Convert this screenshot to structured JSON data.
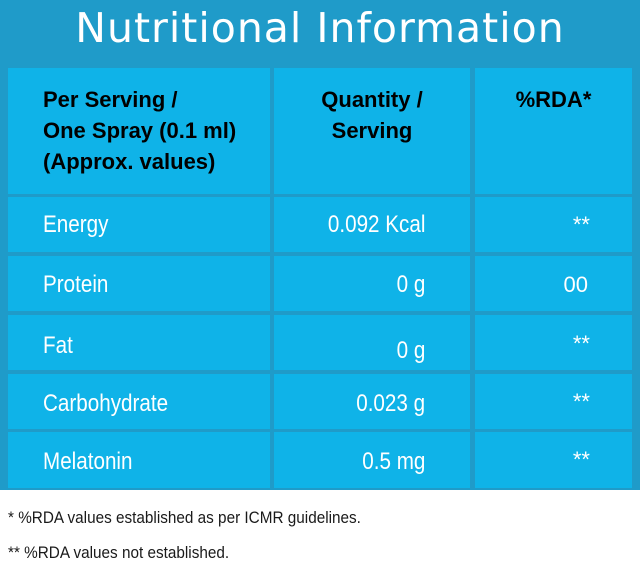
{
  "title": "Nutritional Information",
  "table": {
    "headers": {
      "col1": [
        "Per Serving /",
        "One Spray (0.1 ml)",
        "(Approx. values)"
      ],
      "col2": [
        "Quantity /",
        "Serving"
      ],
      "col3": [
        "%RDA*"
      ]
    },
    "rows": [
      {
        "name": "Energy",
        "quantity": "0.092 Kcal",
        "rda": "**"
      },
      {
        "name": "Protein",
        "quantity": "0 g",
        "rda": "00"
      },
      {
        "name": "Fat",
        "quantity": "0 g",
        "rda": "**"
      },
      {
        "name": "Carbohydrate",
        "quantity": "0.023 g",
        "rda": "**"
      },
      {
        "name": "Melatonin",
        "quantity": "0.5 mg",
        "rda": "**"
      }
    ]
  },
  "footnotes": [
    "* %RDA values established as per ICMR guidelines.",
    "** %RDA values not established."
  ],
  "colors": {
    "panel": "#1f9bc9",
    "cell": "#0fb3e8",
    "text": "#ffffff"
  }
}
